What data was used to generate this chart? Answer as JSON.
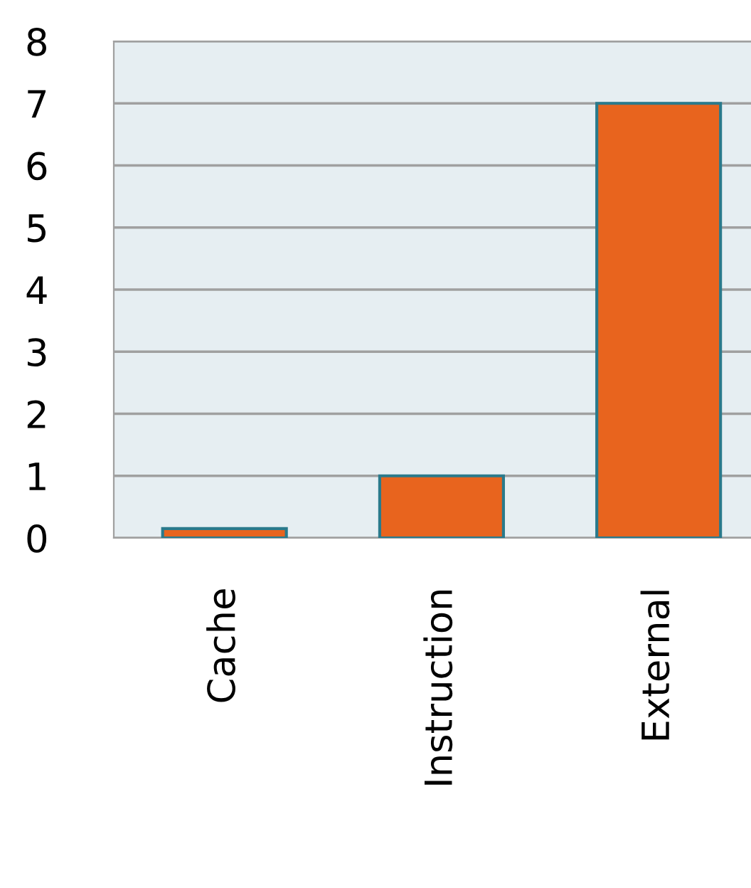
{
  "chart_data": {
    "type": "bar",
    "categories": [
      "Cache",
      "Instruction",
      "External"
    ],
    "values": [
      0.15,
      1,
      7
    ],
    "color": "#e8641e",
    "ylim": [
      0,
      8
    ],
    "yticks": [
      0,
      1,
      2,
      3,
      4,
      5,
      6,
      7,
      8
    ],
    "grid": "y"
  }
}
